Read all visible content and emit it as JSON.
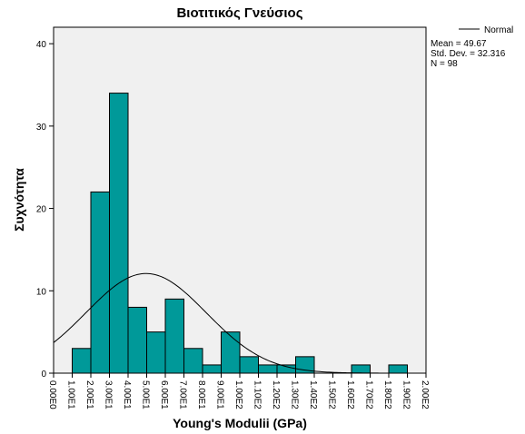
{
  "chart_data": {
    "type": "bar",
    "title": "Βιοτιτικός Γνεύσιος",
    "xlabel": "Young's Modulii (GPa)",
    "ylabel": "Συχνότητα",
    "x_ticks": [
      "0.00E0",
      "1.00E1",
      "2.00E1",
      "3.00E1",
      "4.00E1",
      "5.00E1",
      "6.00E1",
      "7.00E1",
      "8.00E1",
      "9.00E1",
      "1.00E2",
      "1.10E2",
      "1.20E2",
      "1.30E2",
      "1.40E2",
      "1.50E2",
      "1.60E2",
      "1.70E2",
      "1.80E2",
      "1.90E2",
      "2.00E2"
    ],
    "y_ticks": [
      "0",
      "10",
      "20",
      "30",
      "40"
    ],
    "xlim": [
      0,
      200
    ],
    "ylim": [
      0,
      42
    ],
    "bin_width": 10,
    "bins": [
      {
        "start": 10,
        "count": 3
      },
      {
        "start": 20,
        "count": 22
      },
      {
        "start": 30,
        "count": 34
      },
      {
        "start": 40,
        "count": 8
      },
      {
        "start": 50,
        "count": 5
      },
      {
        "start": 60,
        "count": 9
      },
      {
        "start": 70,
        "count": 3
      },
      {
        "start": 80,
        "count": 1
      },
      {
        "start": 90,
        "count": 5
      },
      {
        "start": 100,
        "count": 2
      },
      {
        "start": 110,
        "count": 1
      },
      {
        "start": 120,
        "count": 1
      },
      {
        "start": 130,
        "count": 2
      },
      {
        "start": 160,
        "count": 1
      },
      {
        "start": 180,
        "count": 1
      }
    ],
    "bar_color": "#009999",
    "plot_background": "#f0f0f0",
    "normal_curve": {
      "mean": 49.67,
      "std": 32.316,
      "n": 98
    },
    "legend": {
      "label": "Normal",
      "position": "top-right"
    },
    "stats": {
      "mean": "Mean = 49.67",
      "std_dev": "Std. Dev. = 32.316",
      "n": "N = 98"
    }
  }
}
